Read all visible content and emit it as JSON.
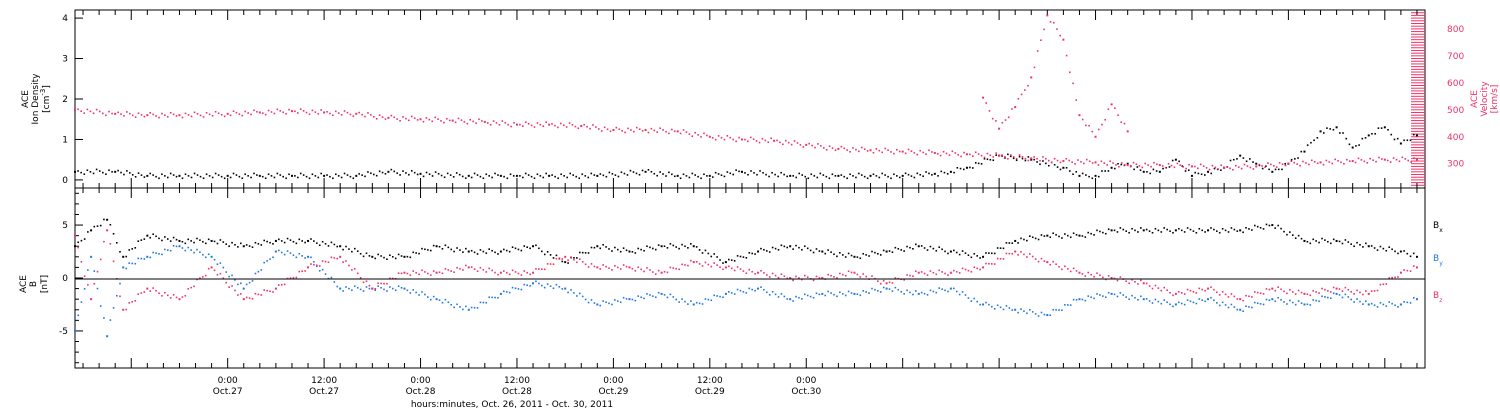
{
  "colors": {
    "black": "#000000",
    "pink": "#ee3366",
    "blue": "#2277dd"
  },
  "chart_data": [
    {
      "type": "scatter",
      "panel": "top",
      "left_axis": {
        "label_lines": [
          "ACE",
          "Ion Density"
        ],
        "unit_base": "[cm",
        "unit_sup": "-3",
        "unit_end": "]",
        "ylim": [
          -0.2,
          4.2
        ],
        "ticks": [
          0,
          1,
          2,
          3,
          4
        ]
      },
      "right_axis": {
        "label_lines": [
          "ACE",
          "Velocity",
          "[km/s]"
        ],
        "ylim": [
          210,
          870
        ],
        "ticks": [
          300,
          400,
          500,
          600,
          700,
          800
        ]
      },
      "xlim": [
        -19,
        149
      ],
      "series": [
        {
          "color": "#000000",
          "axis": "left",
          "x": [
            -19,
            -14,
            -10,
            -6,
            0,
            4,
            8,
            12,
            16,
            20,
            24,
            30,
            34,
            36,
            40,
            46,
            52,
            56,
            60,
            64,
            70,
            76,
            80,
            84,
            88,
            90,
            92,
            96,
            100,
            104,
            106,
            108,
            110,
            112,
            114,
            116,
            118,
            120,
            122,
            124,
            126,
            128,
            130,
            132,
            134,
            136,
            138,
            140,
            142,
            144,
            146,
            148
          ],
          "y": [
            0.2,
            0.2,
            0.1,
            0.1,
            0.1,
            0.1,
            0.1,
            0.1,
            0.1,
            0.2,
            0.15,
            0.1,
            0.1,
            0.1,
            0.1,
            0.1,
            0.2,
            0.1,
            0.1,
            0.2,
            0.1,
            0.1,
            0.1,
            0.1,
            0.15,
            0.2,
            0.3,
            0.6,
            0.5,
            0.3,
            0.1,
            0.1,
            0.3,
            0.4,
            0.2,
            0.2,
            0.5,
            0.1,
            0.2,
            0.3,
            0.6,
            0.4,
            0.2,
            0.4,
            0.7,
            1.2,
            1.3,
            0.8,
            1.1,
            1.3,
            0.9,
            1.1
          ]
        }
      ],
      "series_right": [
        {
          "color": "#ee3366",
          "x": [
            -19,
            -14,
            -10,
            -6,
            0,
            4,
            8,
            12,
            16,
            20,
            24,
            28,
            32,
            36,
            40,
            44,
            48,
            52,
            56,
            60,
            64,
            68,
            72,
            76,
            80,
            84,
            88,
            92,
            96,
            100,
            104,
            108,
            112,
            116,
            120,
            124,
            128,
            132,
            136,
            140,
            144,
            148
          ],
          "y": [
            500,
            485,
            480,
            480,
            485,
            490,
            495,
            490,
            485,
            470,
            465,
            460,
            455,
            445,
            445,
            440,
            425,
            425,
            420,
            400,
            390,
            385,
            370,
            355,
            350,
            345,
            340,
            335,
            330,
            320,
            310,
            305,
            295,
            295,
            290,
            285,
            290,
            300,
            305,
            310,
            315,
            315
          ]
        },
        {
          "color": "#ee3366",
          "x": [
            94,
            96,
            98,
            100,
            102,
            104,
            106,
            108,
            110,
            112
          ],
          "y": [
            545,
            430,
            510,
            620,
            850,
            760,
            480,
            400,
            520,
            420
          ]
        }
      ]
    },
    {
      "type": "scatter",
      "panel": "bottom",
      "y_axis": {
        "label_lines": [
          "ACE",
          "B",
          "[nT]"
        ],
        "ylim": [
          -8.5,
          8.5
        ],
        "ticks": [
          -5,
          0,
          5
        ]
      },
      "xlim": [
        -19,
        149
      ],
      "legend": [
        {
          "base": "B",
          "sub": "x",
          "color": "#000000"
        },
        {
          "base": "B",
          "sub": "y",
          "color": "#2277dd"
        },
        {
          "base": "B",
          "sub": "z",
          "color": "#ee3366"
        }
      ],
      "series": [
        {
          "name": "Bx",
          "color": "#000000",
          "x": [
            -19,
            -17,
            -15,
            -13,
            -10,
            -6,
            -2,
            2,
            6,
            10,
            14,
            18,
            22,
            26,
            30,
            34,
            38,
            42,
            46,
            50,
            54,
            58,
            62,
            66,
            70,
            74,
            78,
            82,
            86,
            90,
            94,
            98,
            102,
            106,
            110,
            114,
            118,
            122,
            126,
            130,
            134,
            138,
            142,
            146,
            148
          ],
          "y": [
            3.0,
            4.5,
            5.5,
            2.0,
            4.0,
            3.5,
            3.5,
            3.0,
            3.5,
            3.5,
            3.0,
            2.0,
            2.0,
            3.0,
            2.5,
            2.5,
            3.0,
            1.5,
            3.0,
            2.5,
            3.0,
            3.0,
            1.5,
            2.5,
            3.0,
            2.5,
            2.0,
            2.5,
            3.0,
            2.5,
            2.0,
            3.5,
            4.0,
            4.0,
            4.5,
            4.5,
            4.5,
            4.5,
            4.5,
            5.0,
            3.5,
            3.5,
            3.0,
            2.5,
            2.0
          ]
        },
        {
          "name": "By",
          "color": "#2277dd",
          "x": [
            -19,
            -17,
            -15,
            -13,
            -10,
            -6,
            -2,
            2,
            6,
            10,
            14,
            18,
            22,
            26,
            30,
            34,
            38,
            42,
            46,
            50,
            54,
            58,
            62,
            66,
            70,
            74,
            78,
            82,
            86,
            90,
            94,
            98,
            102,
            106,
            110,
            114,
            118,
            122,
            126,
            130,
            134,
            138,
            142,
            146,
            148
          ],
          "y": [
            -5.0,
            2.0,
            -5.5,
            1.0,
            2.0,
            3.0,
            2.0,
            -1.0,
            2.5,
            2.0,
            -1.0,
            -1.0,
            -1.0,
            -2.0,
            -3.0,
            -1.5,
            -0.5,
            -1.0,
            -2.5,
            -2.0,
            -1.5,
            -2.5,
            -1.5,
            -1.0,
            -2.0,
            -1.5,
            -1.5,
            -1.0,
            -1.5,
            -1.0,
            -2.5,
            -3.0,
            -3.5,
            -2.0,
            -1.5,
            -2.0,
            -2.5,
            -2.0,
            -3.0,
            -2.0,
            -2.5,
            -1.5,
            -2.5,
            -2.5,
            -2.0
          ]
        },
        {
          "name": "Bz",
          "color": "#ee3366",
          "x": [
            -19,
            -17,
            -15,
            -13,
            -10,
            -6,
            -2,
            2,
            6,
            10,
            14,
            18,
            22,
            26,
            30,
            34,
            38,
            42,
            46,
            50,
            54,
            58,
            62,
            66,
            70,
            74,
            78,
            82,
            86,
            90,
            94,
            98,
            102,
            106,
            110,
            114,
            118,
            122,
            126,
            130,
            134,
            138,
            142,
            146,
            148
          ],
          "y": [
            4.0,
            -2.0,
            4.5,
            -3.0,
            -1.0,
            -2.0,
            1.0,
            -2.0,
            -1.0,
            1.0,
            2.0,
            -1.0,
            0.5,
            0.5,
            1.0,
            0.5,
            0.5,
            2.0,
            1.0,
            1.0,
            0.5,
            1.5,
            1.0,
            0.5,
            0.0,
            0.0,
            0.5,
            -0.5,
            0.5,
            0.5,
            1.0,
            2.5,
            1.5,
            0.5,
            0.0,
            -0.5,
            -1.5,
            -1.0,
            -2.0,
            -1.0,
            -1.5,
            -1.0,
            -1.5,
            0.5,
            1.0
          ]
        }
      ]
    }
  ],
  "x_axis": {
    "ticks": [
      {
        "x": 0,
        "time": "0:00",
        "date": "Oct.27"
      },
      {
        "x": 12,
        "time": "12:00",
        "date": "Oct.27"
      },
      {
        "x": 24,
        "time": "0:00",
        "date": "Oct.28"
      },
      {
        "x": 36,
        "time": "12:00",
        "date": "Oct.28"
      },
      {
        "x": 48,
        "time": "0:00",
        "date": "Oct.29"
      },
      {
        "x": 60,
        "time": "12:00",
        "date": "Oct.29"
      },
      {
        "x": 72,
        "time": "0:00",
        "date": "Oct.30"
      }
    ],
    "title": "hours:minutes, Oct. 26, 2011 - Oct. 30, 2011"
  }
}
